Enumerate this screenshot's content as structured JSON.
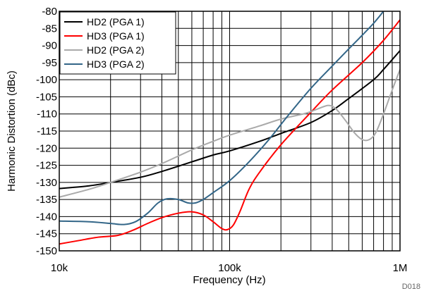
{
  "chart_data": {
    "type": "line",
    "xlabel": "Frequency (Hz)",
    "ylabel": "Harmonic Distortion (dBc)",
    "x_scale": "log",
    "xlim": [
      10000,
      1000000
    ],
    "ylim": [
      -150,
      -80
    ],
    "x_tick_labels": [
      {
        "value": 10000,
        "label": "10k"
      },
      {
        "value": 100000,
        "label": "100k"
      },
      {
        "value": 1000000,
        "label": "1M"
      }
    ],
    "y_ticks": [
      -80,
      -85,
      -90,
      -95,
      -100,
      -105,
      -110,
      -115,
      -120,
      -125,
      -130,
      -135,
      -140,
      -145,
      -150
    ],
    "grid": true,
    "legend_position": "top-left",
    "figure_id": "D018",
    "series": [
      {
        "name": "HD2 (PGA 1)",
        "color": "#000000",
        "points": [
          [
            10000,
            -131.8
          ],
          [
            15000,
            -131
          ],
          [
            20000,
            -130
          ],
          [
            30000,
            -128.5
          ],
          [
            40000,
            -126.8
          ],
          [
            60000,
            -124
          ],
          [
            80000,
            -122
          ],
          [
            100000,
            -120.8
          ],
          [
            150000,
            -118
          ],
          [
            200000,
            -115.7
          ],
          [
            300000,
            -112.5
          ],
          [
            400000,
            -109
          ],
          [
            500000,
            -105.5
          ],
          [
            700000,
            -100
          ],
          [
            800000,
            -97
          ],
          [
            1000000,
            -91.5
          ]
        ]
      },
      {
        "name": "HD3 (PGA 1)",
        "color": "#ff0000",
        "points": [
          [
            10000,
            -148
          ],
          [
            13000,
            -147
          ],
          [
            17000,
            -146
          ],
          [
            22000,
            -145.5
          ],
          [
            27000,
            -144
          ],
          [
            33000,
            -142
          ],
          [
            40000,
            -140.3
          ],
          [
            50000,
            -139
          ],
          [
            60000,
            -138.6
          ],
          [
            70000,
            -139.5
          ],
          [
            80000,
            -141.5
          ],
          [
            90000,
            -143.5
          ],
          [
            97000,
            -143.8
          ],
          [
            105000,
            -142.5
          ],
          [
            115000,
            -138.5
          ],
          [
            130000,
            -132
          ],
          [
            150000,
            -127
          ],
          [
            200000,
            -119
          ],
          [
            300000,
            -109.5
          ],
          [
            400000,
            -103
          ],
          [
            600000,
            -95
          ],
          [
            800000,
            -88.5
          ],
          [
            1000000,
            -82.5
          ]
        ]
      },
      {
        "name": "HD2 (PGA 2)",
        "color": "#aaaaaa",
        "points": [
          [
            10000,
            -134.3
          ],
          [
            15000,
            -132
          ],
          [
            20000,
            -130
          ],
          [
            30000,
            -127
          ],
          [
            40000,
            -124.5
          ],
          [
            60000,
            -120.5
          ],
          [
            80000,
            -118
          ],
          [
            100000,
            -116.2
          ],
          [
            150000,
            -113.5
          ],
          [
            200000,
            -111.5
          ],
          [
            280000,
            -109.8
          ],
          [
            330000,
            -108.5
          ],
          [
            380000,
            -107.5
          ],
          [
            420000,
            -108.5
          ],
          [
            480000,
            -112
          ],
          [
            540000,
            -115.5
          ],
          [
            600000,
            -117.5
          ],
          [
            660000,
            -117.5
          ],
          [
            720000,
            -115.5
          ],
          [
            800000,
            -110
          ],
          [
            900000,
            -103
          ],
          [
            1000000,
            -97
          ]
        ]
      },
      {
        "name": "HD3 (PGA 2)",
        "color": "#336688",
        "points": [
          [
            10000,
            -141.3
          ],
          [
            15000,
            -141.5
          ],
          [
            20000,
            -142
          ],
          [
            24000,
            -142.3
          ],
          [
            28000,
            -141.5
          ],
          [
            33000,
            -139
          ],
          [
            38000,
            -136
          ],
          [
            43000,
            -134.8
          ],
          [
            50000,
            -135
          ],
          [
            57000,
            -136
          ],
          [
            63000,
            -136
          ],
          [
            70000,
            -135
          ],
          [
            80000,
            -133
          ],
          [
            100000,
            -129.5
          ],
          [
            130000,
            -124
          ],
          [
            170000,
            -117.5
          ],
          [
            220000,
            -110.5
          ],
          [
            300000,
            -102.5
          ],
          [
            400000,
            -96
          ],
          [
            500000,
            -91
          ],
          [
            600000,
            -87
          ],
          [
            700000,
            -83.5
          ],
          [
            800000,
            -80
          ]
        ]
      }
    ]
  }
}
